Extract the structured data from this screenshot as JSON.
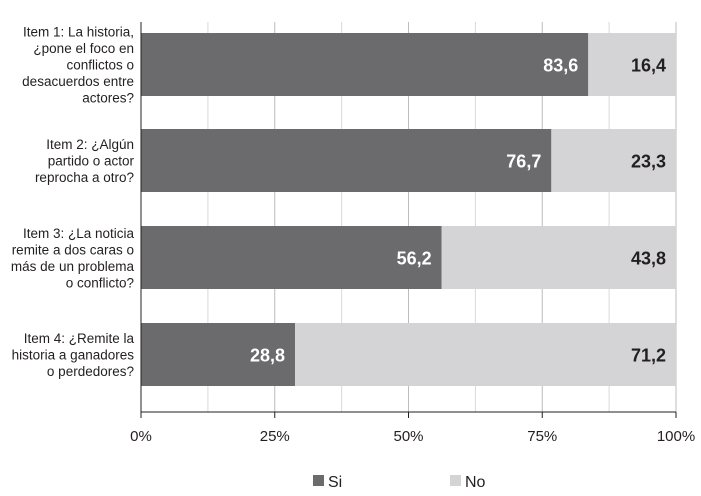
{
  "chart_data": {
    "type": "bar",
    "orientation": "horizontal",
    "stacked": "percent",
    "categories": [
      [
        "Item 1: La historia,",
        "¿pone el foco en",
        "conflictos o",
        "desacuerdos entre",
        "actores?"
      ],
      [
        "Item 2:  ¿Algún",
        "partido o actor",
        "reprocha a otro?"
      ],
      [
        "Item 3: ¿La noticia",
        "remite a dos caras o",
        "más de un problema",
        "o conflicto?"
      ],
      [
        "Item 4: ¿Remite la",
        "historia a ganadores",
        "o perdedores?"
      ]
    ],
    "series": [
      {
        "name": "Si",
        "color": "#6b6b6d",
        "values": [
          83.6,
          76.7,
          56.2,
          28.8
        ],
        "labels": [
          "83,6",
          "76,7",
          "56,2",
          "28,8"
        ]
      },
      {
        "name": "No",
        "color": "#d4d4d6",
        "values": [
          16.4,
          23.3,
          43.8,
          71.2
        ],
        "labels": [
          "16,4",
          "23,3",
          "43,8",
          "71,2"
        ]
      }
    ],
    "xlim": [
      0,
      100
    ],
    "x_ticks": [
      "0%",
      "25%",
      "50%",
      "75%",
      "100%"
    ],
    "grid": true,
    "legend_position": "bottom-center"
  }
}
